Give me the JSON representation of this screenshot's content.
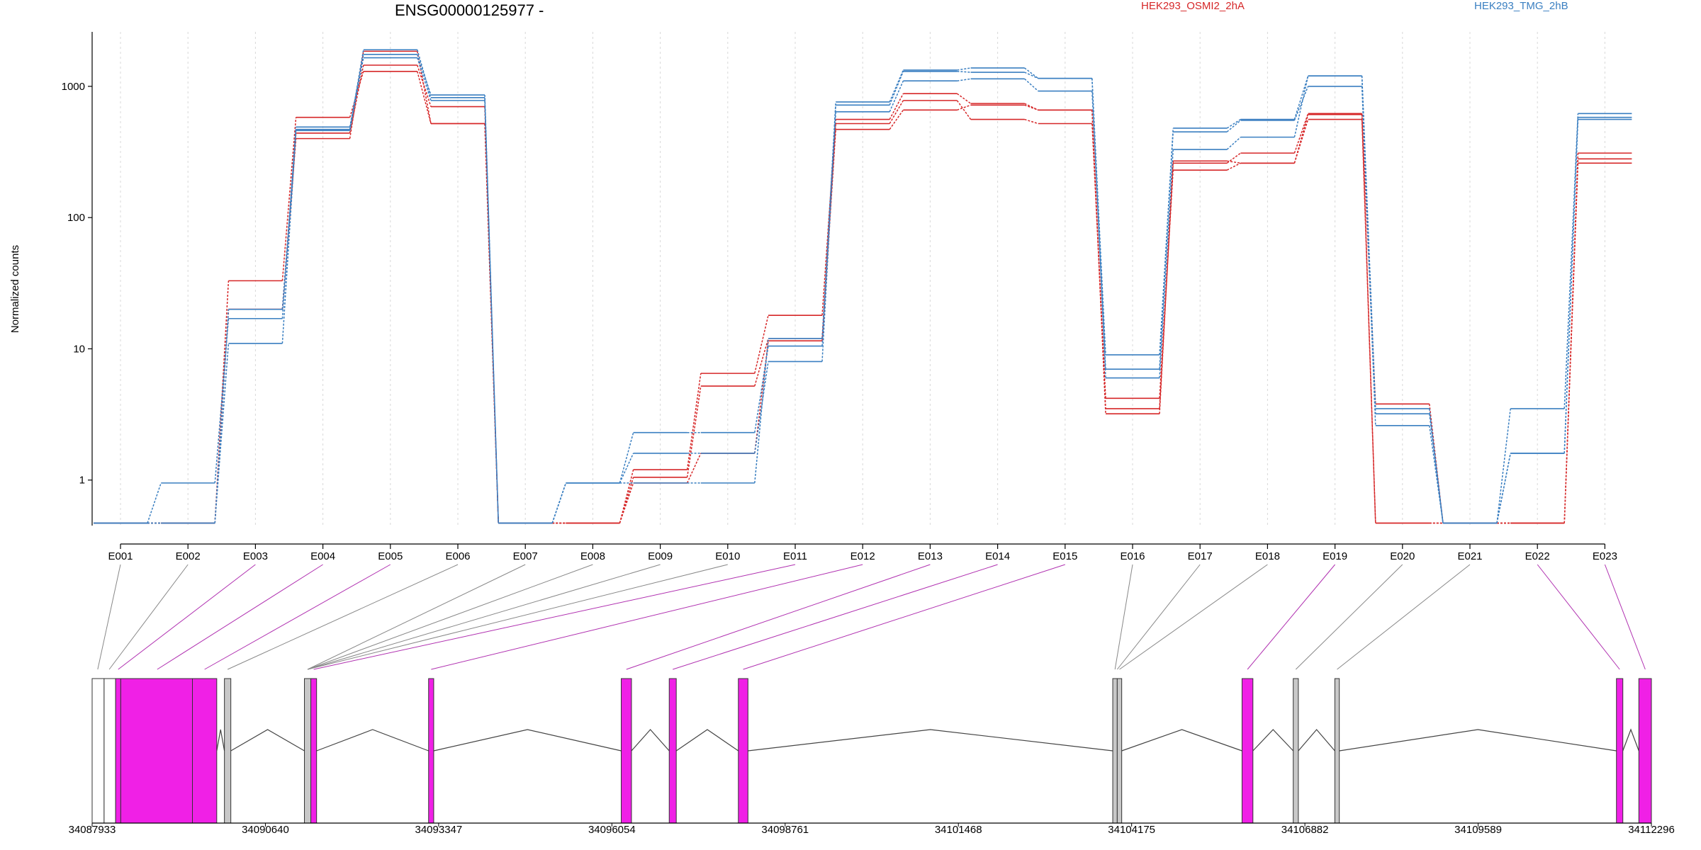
{
  "chart_data": {
    "type": "line",
    "title": "ENSG00000125977 -",
    "ylabel": "Normalized counts",
    "y_scale": "log",
    "ylim": [
      0.45,
      2600
    ],
    "y_ticks": [
      {
        "value": 1,
        "label": "1"
      },
      {
        "value": 10,
        "label": "10"
      },
      {
        "value": 100,
        "label": "100"
      },
      {
        "value": 1000,
        "label": "1000"
      }
    ],
    "grid": "vertical dashed at exons",
    "categories": [
      "E001",
      "E002",
      "E003",
      "E004",
      "E005",
      "E006",
      "E007",
      "E008",
      "E009",
      "E010",
      "E011",
      "E012",
      "E013",
      "E014",
      "E015",
      "E016",
      "E017",
      "E018",
      "E019",
      "E020",
      "E021",
      "E022",
      "E023"
    ],
    "legend": [
      {
        "name": "HEK293_OSMI2_2hA",
        "color": "#d62728"
      },
      {
        "name": "HEK293_TMG_2hB",
        "color": "#3a7fc1"
      }
    ],
    "series": [
      {
        "group": "HEK293_OSMI2_2hA",
        "color": "#d62728",
        "values": [
          0.47,
          0.47,
          33,
          580,
          1300,
          520,
          0.47,
          0.47,
          1.2,
          6.5,
          18,
          560,
          880,
          740,
          660,
          3.5,
          260,
          310,
          620,
          0.47,
          0.47,
          0.47,
          310
        ]
      },
      {
        "group": "HEK293_OSMI2_2hA",
        "color": "#d62728",
        "values": [
          0.47,
          0.47,
          20,
          440,
          1450,
          700,
          0.47,
          0.47,
          1.05,
          5.2,
          12,
          520,
          780,
          560,
          520,
          4.2,
          230,
          260,
          560,
          0.47,
          0.47,
          0.47,
          260
        ]
      },
      {
        "group": "HEK293_OSMI2_2hA",
        "color": "#d62728",
        "values": [
          0.47,
          0.47,
          20,
          400,
          1850,
          520,
          0.47,
          0.47,
          0.95,
          1.6,
          11.5,
          470,
          660,
          720,
          660,
          3.2,
          270,
          260,
          610,
          3.8,
          0.47,
          0.47,
          280
        ]
      },
      {
        "group": "HEK293_TMG_2hB",
        "color": "#3a7fc1",
        "values": [
          0.47,
          0.95,
          17,
          490,
          1750,
          860,
          0.47,
          0.95,
          2.3,
          2.3,
          10.5,
          760,
          1330,
          1380,
          1150,
          9,
          480,
          560,
          1200,
          3.2,
          0.47,
          3.5,
          620
        ]
      },
      {
        "group": "HEK293_TMG_2hB",
        "color": "#3a7fc1",
        "values": [
          0.47,
          0.47,
          11,
          460,
          1650,
          780,
          0.47,
          0.95,
          1.6,
          1.6,
          8,
          640,
          1100,
          1140,
          920,
          7,
          450,
          550,
          1000,
          2.6,
          0.47,
          1.6,
          560
        ]
      },
      {
        "group": "HEK293_TMG_2hB",
        "color": "#3a7fc1",
        "values": [
          0.47,
          0.47,
          20,
          470,
          1900,
          820,
          0.47,
          0.95,
          0.95,
          0.95,
          12,
          720,
          1300,
          1280,
          1150,
          6,
          330,
          410,
          1200,
          3.5,
          0.47,
          1.6,
          580
        ]
      }
    ],
    "gene_model": {
      "x_ticks": [
        "34087933",
        "34090640",
        "34093347",
        "34096054",
        "34098761",
        "34101468",
        "34104175",
        "34106882",
        "34109589",
        "34112296"
      ],
      "x_tick_values": [
        34087933,
        34090640,
        34093347,
        34096054,
        34098761,
        34101468,
        34104175,
        34106882,
        34109589,
        34112296
      ],
      "exons": [
        {
          "start": 34087933,
          "end": 34088120,
          "highlight": false
        },
        {
          "start": 34088120,
          "end": 34088300,
          "highlight": false
        },
        {
          "start": 34088300,
          "end": 34088380,
          "highlight": true
        },
        {
          "start": 34088380,
          "end": 34089500,
          "highlight": true
        },
        {
          "start": 34089500,
          "end": 34089880,
          "highlight": true
        },
        {
          "start": 34090000,
          "end": 34090100,
          "highlight": false
        },
        {
          "start": 34091250,
          "end": 34091350,
          "highlight": false
        },
        {
          "start": 34091350,
          "end": 34091440,
          "highlight": true
        },
        {
          "start": 34093190,
          "end": 34093270,
          "highlight": true
        },
        {
          "start": 34096200,
          "end": 34096360,
          "highlight": true
        },
        {
          "start": 34096950,
          "end": 34097060,
          "highlight": true
        },
        {
          "start": 34098030,
          "end": 34098180,
          "highlight": true
        },
        {
          "start": 34103880,
          "end": 34103950,
          "highlight": false
        },
        {
          "start": 34103950,
          "end": 34104020,
          "highlight": false
        },
        {
          "start": 34105900,
          "end": 34106070,
          "highlight": true
        },
        {
          "start": 34106700,
          "end": 34106780,
          "highlight": false
        },
        {
          "start": 34107350,
          "end": 34107420,
          "highlight": false
        },
        {
          "start": 34111750,
          "end": 34111850,
          "highlight": true
        },
        {
          "start": 34112100,
          "end": 34112296,
          "highlight": true
        }
      ],
      "exon_links": [
        {
          "exon": "E001",
          "pos": 34088020,
          "highlight": false
        },
        {
          "exon": "E002",
          "pos": 34088200,
          "highlight": false
        },
        {
          "exon": "E003",
          "pos": 34088340,
          "highlight": true
        },
        {
          "exon": "E004",
          "pos": 34088950,
          "highlight": true
        },
        {
          "exon": "E005",
          "pos": 34089690,
          "highlight": true
        },
        {
          "exon": "E006",
          "pos": 34090050,
          "highlight": false
        },
        {
          "exon": "E007",
          "pos": 34091300,
          "highlight": false
        },
        {
          "exon": "E008",
          "pos": 34091300,
          "highlight": false
        },
        {
          "exon": "E009",
          "pos": 34091300,
          "highlight": false
        },
        {
          "exon": "E010",
          "pos": 34091300,
          "highlight": false
        },
        {
          "exon": "E011",
          "pos": 34091395,
          "highlight": true
        },
        {
          "exon": "E012",
          "pos": 34093230,
          "highlight": true
        },
        {
          "exon": "E013",
          "pos": 34096280,
          "highlight": true
        },
        {
          "exon": "E014",
          "pos": 34097005,
          "highlight": true
        },
        {
          "exon": "E015",
          "pos": 34098105,
          "highlight": true
        },
        {
          "exon": "E016",
          "pos": 34103915,
          "highlight": false
        },
        {
          "exon": "E017",
          "pos": 34103950,
          "highlight": false
        },
        {
          "exon": "E018",
          "pos": 34103985,
          "highlight": false
        },
        {
          "exon": "E019",
          "pos": 34105985,
          "highlight": true
        },
        {
          "exon": "E020",
          "pos": 34106740,
          "highlight": false
        },
        {
          "exon": "E021",
          "pos": 34107385,
          "highlight": false
        },
        {
          "exon": "E022",
          "pos": 34111800,
          "highlight": true
        },
        {
          "exon": "E023",
          "pos": 34112200,
          "highlight": true
        }
      ]
    }
  }
}
